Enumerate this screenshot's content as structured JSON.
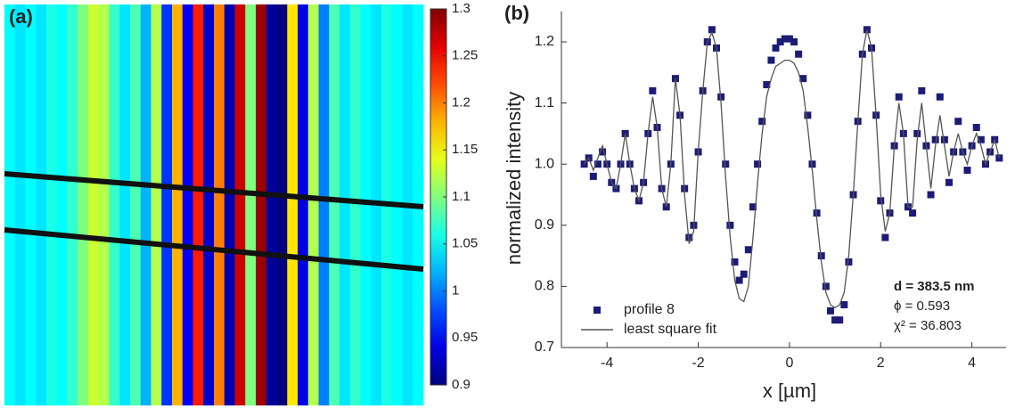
{
  "chart_data": [
    {
      "type": "heatmap",
      "title": "(a)",
      "values": [
        1.05,
        1.04,
        1.05,
        1.04,
        1.06,
        1.05,
        1.07,
        1.1,
        1.13,
        1.12,
        1.07,
        1.04,
        1.08,
        1.02,
        1.12,
        0.97,
        1.18,
        0.95,
        1.24,
        0.93,
        1.2,
        0.92,
        1.27,
        1.1,
        1.29,
        0.91,
        0.9,
        1.16,
        0.94,
        1.12,
        1.0,
        1.08,
        1.04,
        1.07,
        1.05,
        1.04,
        1.06,
        1.05,
        1.04,
        1.05
      ],
      "zlim": [
        0.9,
        1.3
      ],
      "zticks": [
        0.9,
        0.95,
        1,
        1.05,
        1.1,
        1.15,
        1.2,
        1.25,
        1.3
      ]
    },
    {
      "type": "scatter",
      "title": "(b)",
      "xlabel": "x [µm]",
      "ylabel": "normalized intensity",
      "x": [
        -4.5,
        -4.4,
        -4.3,
        -4.2,
        -4.1,
        -4.0,
        -3.9,
        -3.8,
        -3.7,
        -3.6,
        -3.5,
        -3.4,
        -3.3,
        -3.2,
        -3.1,
        -3.0,
        -2.9,
        -2.8,
        -2.7,
        -2.6,
        -2.5,
        -2.4,
        -2.3,
        -2.2,
        -2.1,
        -2.0,
        -1.9,
        -1.8,
        -1.7,
        -1.6,
        -1.5,
        -1.4,
        -1.3,
        -1.2,
        -1.1,
        -1.0,
        -0.9,
        -0.8,
        -0.7,
        -0.6,
        -0.5,
        -0.4,
        -0.3,
        -0.2,
        -0.1,
        0,
        0.1,
        0.2,
        0.3,
        0.4,
        0.5,
        0.6,
        0.7,
        0.8,
        0.9,
        1.0,
        1.1,
        1.2,
        1.3,
        1.4,
        1.5,
        1.6,
        1.7,
        1.8,
        1.9,
        2.0,
        2.1,
        2.2,
        2.3,
        2.4,
        2.5,
        2.6,
        2.7,
        2.8,
        2.9,
        3.0,
        3.1,
        3.2,
        3.3,
        3.4,
        3.5,
        3.6,
        3.7,
        3.8,
        3.9,
        4.0,
        4.1,
        4.2,
        4.3,
        4.4,
        4.5,
        4.6
      ],
      "series": [
        {
          "name": "profile 8",
          "color": "#1c1c78",
          "style": "markers",
          "values": [
            1.0,
            1.01,
            0.98,
            1.0,
            1.02,
            1.0,
            0.97,
            0.96,
            1.0,
            1.05,
            1.0,
            0.96,
            0.94,
            0.97,
            1.05,
            1.12,
            1.06,
            0.96,
            0.93,
            1.0,
            1.14,
            1.08,
            0.96,
            0.88,
            0.9,
            1.02,
            1.12,
            1.2,
            1.22,
            1.19,
            1.11,
            1.0,
            0.9,
            0.84,
            0.81,
            0.82,
            0.86,
            0.93,
            1.0,
            1.07,
            1.13,
            1.17,
            1.19,
            1.2,
            1.205,
            1.205,
            1.2,
            1.18,
            1.14,
            1.08,
            1.0,
            0.92,
            0.85,
            0.8,
            0.76,
            0.745,
            0.745,
            0.77,
            0.84,
            0.95,
            1.07,
            1.18,
            1.22,
            1.19,
            1.08,
            0.94,
            0.88,
            0.92,
            1.03,
            1.11,
            1.05,
            0.93,
            0.92,
            1.05,
            1.12,
            1.03,
            0.95,
            1.04,
            1.11,
            1.04,
            0.97,
            1.02,
            1.07,
            1.02,
            0.99,
            1.03,
            1.06,
            1.04,
            1.0,
            1.02,
            1.04,
            1.01
          ]
        },
        {
          "name": "least square fit",
          "color": "#555555",
          "style": "line",
          "values": [
            1.0,
            1.01,
            0.99,
            1.01,
            1.03,
            1.0,
            0.97,
            0.96,
            1.0,
            1.05,
            1.0,
            0.96,
            0.94,
            0.97,
            1.05,
            1.11,
            1.06,
            0.96,
            0.93,
            1.0,
            1.14,
            1.08,
            0.95,
            0.87,
            0.89,
            1.02,
            1.12,
            1.2,
            1.215,
            1.19,
            1.1,
            0.98,
            0.88,
            0.81,
            0.78,
            0.775,
            0.8,
            0.88,
            0.97,
            1.05,
            1.11,
            1.14,
            1.16,
            1.165,
            1.17,
            1.17,
            1.165,
            1.15,
            1.12,
            1.06,
            0.99,
            0.91,
            0.84,
            0.79,
            0.77,
            0.765,
            0.77,
            0.79,
            0.85,
            0.95,
            1.07,
            1.18,
            1.22,
            1.19,
            1.08,
            0.95,
            0.89,
            0.92,
            1.03,
            1.1,
            1.05,
            0.93,
            0.93,
            1.04,
            1.1,
            1.03,
            0.96,
            1.03,
            1.08,
            1.03,
            0.98,
            1.02,
            1.05,
            1.02,
            1.0,
            1.03,
            1.05,
            1.03,
            1.0,
            1.02,
            1.04,
            1.01
          ]
        }
      ],
      "xlim": [
        -5,
        4.75
      ],
      "xticks": [
        -4,
        -2,
        0,
        2,
        4
      ],
      "ylim": [
        0.7,
        1.25
      ],
      "yticks": [
        0.7,
        0.8,
        0.9,
        {
          "value": 1,
          "label": "1.0"
        },
        1.1,
        1.2
      ],
      "annotations": [
        "d = 383.5 nm",
        "ϕ = 0.593",
        "χ² = 36.803"
      ]
    }
  ]
}
